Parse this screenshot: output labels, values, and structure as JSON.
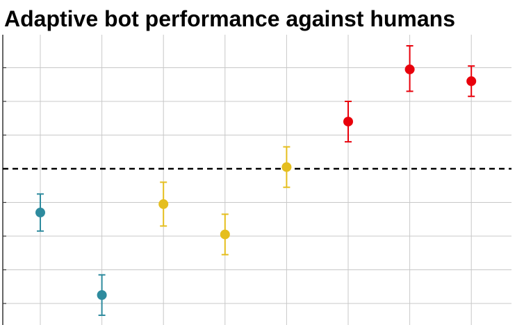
{
  "chart_data": {
    "type": "scatter",
    "title": "Adaptive bot performance against humans",
    "xlabel": "",
    "ylabel": "",
    "grid": true,
    "reference_line": {
      "y": 0,
      "style": "dashed",
      "color": "#000000"
    },
    "ylim": [
      -4.1,
      4.0
    ],
    "points": [
      {
        "x": 1,
        "y": -1.3,
        "err_low": 0.55,
        "err_high": 0.55,
        "color": "#2E8B9E"
      },
      {
        "x": 2,
        "y": -3.75,
        "err_low": 0.6,
        "err_high": 0.6,
        "color": "#2E8B9E"
      },
      {
        "x": 3,
        "y": -1.05,
        "err_low": 0.65,
        "err_high": 0.65,
        "color": "#E5BE1E"
      },
      {
        "x": 4,
        "y": -1.95,
        "err_low": 0.6,
        "err_high": 0.6,
        "color": "#E5BE1E"
      },
      {
        "x": 5,
        "y": 0.05,
        "err_low": 0.6,
        "err_high": 0.6,
        "color": "#E5BE1E"
      },
      {
        "x": 6,
        "y": 1.4,
        "err_low": 0.6,
        "err_high": 0.6,
        "color": "#E8000B"
      },
      {
        "x": 7,
        "y": 2.95,
        "err_low": 0.65,
        "err_high": 0.7,
        "color": "#E8000B"
      },
      {
        "x": 8,
        "y": 2.6,
        "err_low": 0.45,
        "err_high": 0.45,
        "color": "#E8000B"
      }
    ]
  }
}
